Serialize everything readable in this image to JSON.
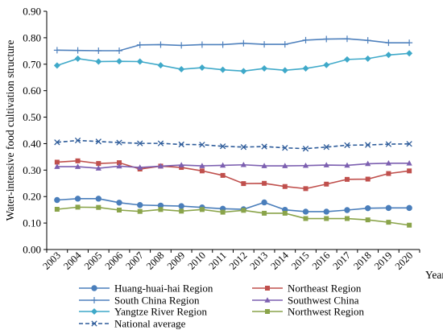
{
  "chart_data": {
    "type": "line",
    "ylabel": "Water-intensive food cultivation structure",
    "xlabel": "Year",
    "ylim": [
      0,
      0.9
    ],
    "y_ticks": [
      "0.00",
      "0.10",
      "0.20",
      "0.30",
      "0.40",
      "0.50",
      "0.60",
      "0.70",
      "0.80",
      "0.90"
    ],
    "grid": false,
    "legend_position": "bottom",
    "x": [
      "2003",
      "2004",
      "2005",
      "2006",
      "2007",
      "2008",
      "2009",
      "2010",
      "2011",
      "2012",
      "2013",
      "2014",
      "2015",
      "2016",
      "2017",
      "2018",
      "2019",
      "2020"
    ],
    "series": [
      {
        "name": "Huang-huai-hai Region",
        "color": "#4a7ebb",
        "marker": "circle",
        "dash": "solid",
        "values": [
          0.187,
          0.192,
          0.192,
          0.177,
          0.168,
          0.166,
          0.164,
          0.159,
          0.154,
          0.152,
          0.178,
          0.15,
          0.143,
          0.143,
          0.149,
          0.156,
          0.157,
          0.157
        ]
      },
      {
        "name": "Northeast Region",
        "color": "#c0504d",
        "marker": "square",
        "dash": "solid",
        "values": [
          0.33,
          0.335,
          0.325,
          0.328,
          0.304,
          0.315,
          0.31,
          0.297,
          0.28,
          0.249,
          0.25,
          0.238,
          0.23,
          0.247,
          0.265,
          0.266,
          0.287,
          0.297
        ]
      },
      {
        "name": "South China Region",
        "color": "#4f81bd",
        "marker": "plus",
        "dash": "solid",
        "values": [
          0.753,
          0.752,
          0.751,
          0.751,
          0.773,
          0.774,
          0.771,
          0.774,
          0.774,
          0.779,
          0.775,
          0.775,
          0.791,
          0.795,
          0.796,
          0.79,
          0.781,
          0.781
        ]
      },
      {
        "name": "Southwest China",
        "color": "#7c5fb0",
        "marker": "triangle",
        "dash": "solid",
        "values": [
          0.313,
          0.313,
          0.307,
          0.315,
          0.31,
          0.315,
          0.319,
          0.316,
          0.318,
          0.32,
          0.316,
          0.316,
          0.317,
          0.319,
          0.318,
          0.324,
          0.326,
          0.326
        ]
      },
      {
        "name": "Yangtze River Region",
        "color": "#3fa9c9",
        "marker": "diamond",
        "dash": "solid",
        "values": [
          0.695,
          0.721,
          0.71,
          0.711,
          0.71,
          0.696,
          0.681,
          0.687,
          0.679,
          0.674,
          0.684,
          0.677,
          0.684,
          0.697,
          0.718,
          0.721,
          0.735,
          0.741
        ]
      },
      {
        "name": "Northwest Region",
        "color": "#8aa44a",
        "marker": "square",
        "dash": "solid",
        "values": [
          0.152,
          0.16,
          0.159,
          0.149,
          0.144,
          0.151,
          0.145,
          0.151,
          0.141,
          0.148,
          0.137,
          0.137,
          0.117,
          0.117,
          0.117,
          0.112,
          0.103,
          0.092
        ]
      },
      {
        "name": "National average",
        "color": "#2e5c9a",
        "marker": "x",
        "dash": "dashed",
        "values": [
          0.405,
          0.412,
          0.408,
          0.404,
          0.401,
          0.401,
          0.397,
          0.396,
          0.39,
          0.387,
          0.389,
          0.384,
          0.381,
          0.387,
          0.394,
          0.395,
          0.398,
          0.399
        ]
      }
    ]
  }
}
